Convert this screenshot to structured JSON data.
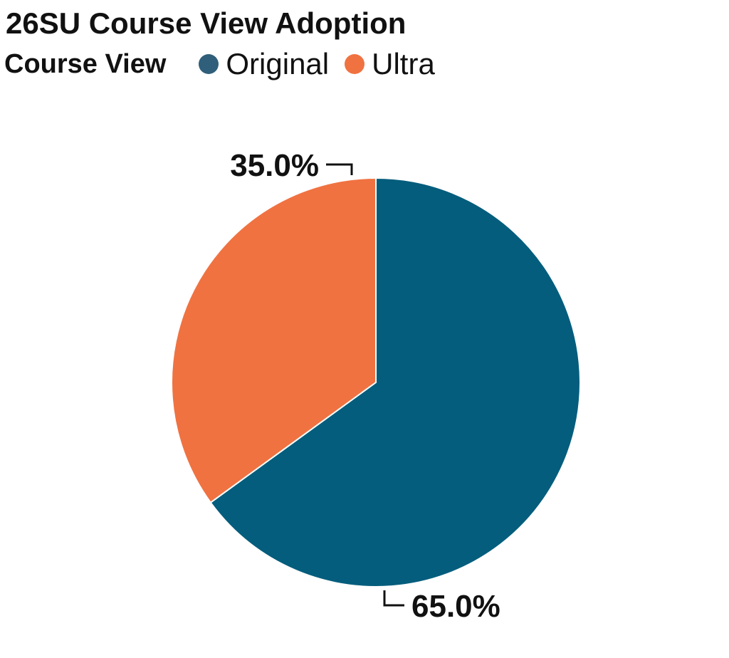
{
  "chart_data": {
    "type": "pie",
    "title": "26SU Course View Adoption",
    "legend_title": "Course View",
    "legend_position": "top-left",
    "slices": [
      {
        "name": "Original",
        "value": 65.0,
        "label": "65.0%",
        "color": "#045d7c"
      },
      {
        "name": "Ultra",
        "value": 35.0,
        "label": "35.0%",
        "color": "#f07241"
      }
    ]
  },
  "legend": {
    "title": "Course View",
    "items": [
      {
        "label": "Original",
        "color": "#2f5f7a"
      },
      {
        "label": "Ultra",
        "color": "#f07241"
      }
    ]
  }
}
